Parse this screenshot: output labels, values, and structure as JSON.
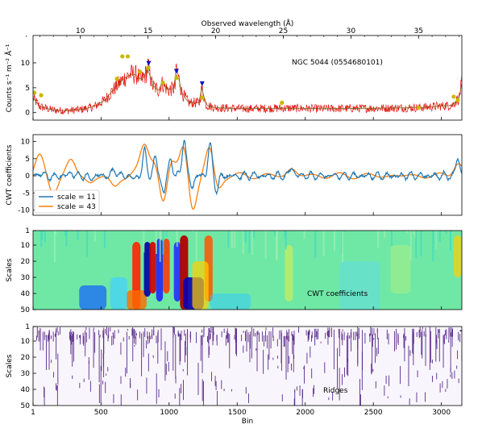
{
  "chart_data": [
    {
      "type": "line",
      "panel": "spectrum",
      "top_axis_label": "Observed wavelength (Å)",
      "top_ticks": [
        "10",
        "15",
        "20",
        "25",
        "30",
        "35"
      ],
      "top_tick_values": [
        10,
        15,
        20,
        25,
        30,
        35
      ],
      "top_xlim": [
        6.5,
        38.2
      ],
      "ylabel": "Counts s⁻¹ m⁻² Å⁻¹",
      "ylim": [
        -1.5,
        15.5
      ],
      "yticks": [
        0,
        5,
        10
      ],
      "annotation": "NGC 5044 (0554680101)",
      "spectrum_color": "#e8110e",
      "model_color": "#7a6a1e",
      "marker_color_dots": "#c9b800",
      "marker_color_triangles": "#1010c0",
      "series": [
        {
          "name": "",
          "x": [
            6.5,
            7.0,
            8.0,
            9.0,
            10.0,
            11.0,
            11.8,
            12.4,
            12.9,
            13.3,
            13.6,
            13.8,
            14.2,
            14.5,
            14.9,
            15.0,
            15.3,
            15.8,
            16.0,
            16.5,
            17.0,
            17.1,
            17.5,
            18.0,
            18.8,
            18.97,
            19.3,
            20.0,
            22.0,
            25.0,
            28.0,
            32.0,
            35.0,
            37.5,
            38.0,
            38.2
          ],
          "y": [
            3.0,
            1.2,
            0.5,
            0.4,
            0.6,
            1.2,
            2.5,
            4.5,
            6.0,
            7.0,
            7.5,
            7.8,
            7.5,
            6.5,
            8.0,
            9.5,
            5.5,
            4.5,
            6.0,
            4.5,
            5.0,
            9.0,
            4.0,
            2.0,
            2.0,
            5.0,
            1.5,
            1.0,
            0.8,
            0.9,
            0.8,
            0.9,
            1.0,
            1.5,
            3.0,
            6.0
          ]
        }
      ],
      "dots": [
        {
          "x": 6.6,
          "y": 4.0
        },
        {
          "x": 7.1,
          "y": 3.5
        },
        {
          "x": 12.7,
          "y": 6.8
        },
        {
          "x": 13.1,
          "y": 11.3
        },
        {
          "x": 13.5,
          "y": 11.3
        },
        {
          "x": 14.4,
          "y": 8.2
        },
        {
          "x": 15.0,
          "y": 9.0
        },
        {
          "x": 16.1,
          "y": 6.0
        },
        {
          "x": 17.1,
          "y": 7.0
        },
        {
          "x": 19.0,
          "y": 3.0
        },
        {
          "x": 24.9,
          "y": 2.0
        },
        {
          "x": 35.0,
          "y": 1.0
        },
        {
          "x": 37.6,
          "y": 3.2
        },
        {
          "x": 37.9,
          "y": 2.5
        }
      ],
      "triangles": [
        {
          "x": 15.05,
          "y": 9.9
        },
        {
          "x": 17.1,
          "y": 8.3
        },
        {
          "x": 19.0,
          "y": 5.8
        }
      ]
    },
    {
      "type": "line",
      "panel": "cwt",
      "ylabel": "CWT coefficients",
      "ylim": [
        -11.5,
        12
      ],
      "yticks": [
        -10,
        -5,
        0,
        5,
        10
      ],
      "legend_placement": "lower-left",
      "series": [
        {
          "name": "scale = 11",
          "color": "#1f77b4"
        },
        {
          "name": "scale = 43",
          "color": "#ff7f0e"
        }
      ],
      "features": [
        {
          "bin": 50,
          "blue": 0.8,
          "orange": 5.5
        },
        {
          "bin": 150,
          "blue": -0.5,
          "orange": -4.5
        },
        {
          "bin": 280,
          "blue": 1.0,
          "orange": 4.5
        },
        {
          "bin": 420,
          "blue": -1.0,
          "orange": -2.0
        },
        {
          "bin": 600,
          "blue": 2.0,
          "orange": -3.5
        },
        {
          "bin": 740,
          "blue": -1.0,
          "orange": 1.0
        },
        {
          "bin": 820,
          "blue": 7.0,
          "orange": 8.5
        },
        {
          "bin": 900,
          "blue": 5.0,
          "orange": 5.0
        },
        {
          "bin": 960,
          "blue": -5.0,
          "orange": -10.0
        },
        {
          "bin": 1010,
          "blue": 5.0,
          "orange": 5.5
        },
        {
          "bin": 1110,
          "blue": 11.0,
          "orange": 10.0
        },
        {
          "bin": 1170,
          "blue": -3.0,
          "orange": -11.0
        },
        {
          "bin": 1300,
          "blue": 9.0,
          "orange": 9.0
        },
        {
          "bin": 1350,
          "blue": -4.0,
          "orange": -5.0
        },
        {
          "bin": 1900,
          "blue": 2.5,
          "orange": 2.0
        },
        {
          "bin": 3120,
          "blue": 5.0,
          "orange": 4.0
        }
      ]
    },
    {
      "type": "heatmap",
      "panel": "scalogram",
      "ylabel": "Scales",
      "yticks": [
        1,
        10,
        20,
        30,
        40,
        50
      ],
      "annotation": "CWT coefficients",
      "colormap": "jet"
    },
    {
      "type": "scatter",
      "panel": "ridges",
      "ylabel": "Scales",
      "yticks": [
        1,
        10,
        20,
        30,
        40,
        50
      ],
      "xlabel": "Bin",
      "xticks": [
        1,
        500,
        1000,
        1500,
        2000,
        2500,
        3000
      ],
      "xlim": [
        1,
        3150
      ],
      "annotation": "Ridges",
      "ridge_color": "#5a2a8a",
      "background": "#f8f6fc"
    }
  ]
}
